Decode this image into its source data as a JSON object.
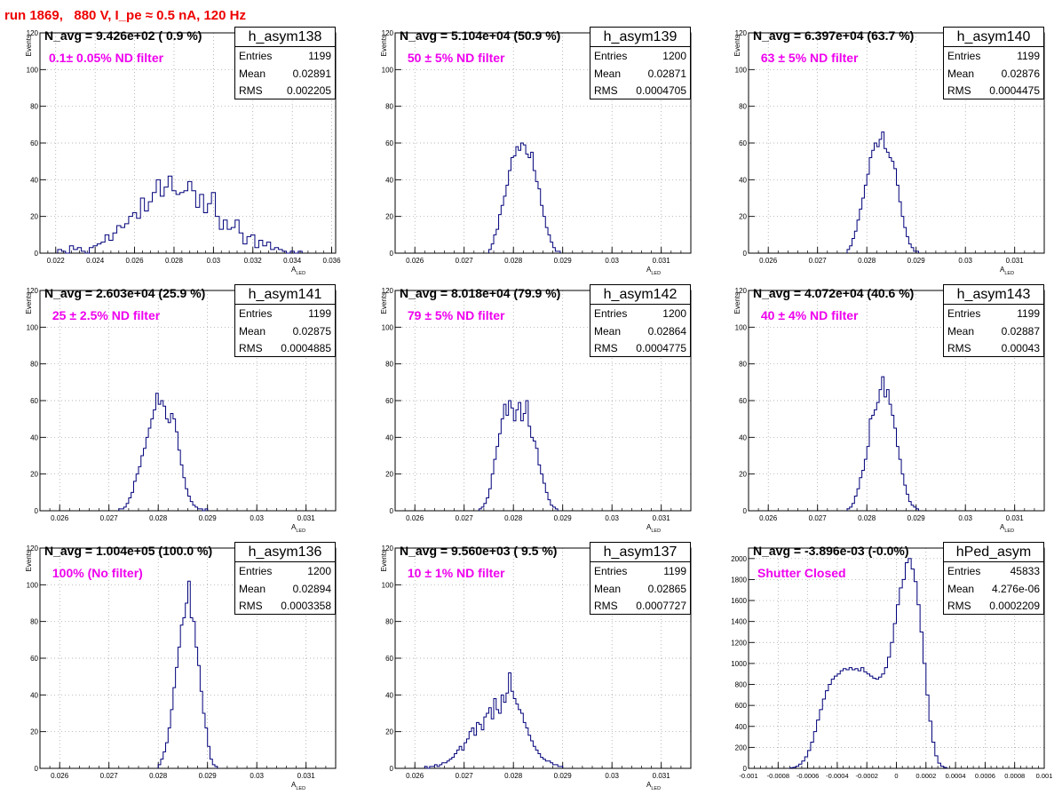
{
  "page": {
    "title": "run 1869,   880 V, I_pe ≈ 0.5 nA, 120 Hz"
  },
  "chart_data": [
    {
      "type": "bar",
      "hist_name": "h_asym138",
      "navg": "N_avg = 9.426e+02 ( 0.9 %)",
      "filter": "0.1± 0.05% ND filter",
      "stats": {
        "entries": "1199",
        "mean": "0.02891",
        "rms": "0.002205"
      },
      "xlim": [
        0.0212,
        0.0362
      ],
      "ylim": [
        0,
        120
      ],
      "x_ticks": [
        "0.022",
        "0.024",
        "0.026",
        "0.028",
        "0.03",
        "0.032",
        "0.034",
        "0.036"
      ],
      "x_tick_values": [
        0.022,
        0.024,
        0.026,
        0.028,
        0.03,
        0.032,
        0.034,
        0.036
      ],
      "y_ticks": [
        0,
        20,
        40,
        60,
        80,
        100,
        120
      ],
      "ylabel": "Events",
      "xlabel": "A",
      "xlabel_sub": "LED",
      "bin_start": 0.0221,
      "bin_width": 0.0002,
      "values": [
        2,
        1,
        0,
        4,
        2,
        3,
        1,
        0,
        3,
        4,
        5,
        6,
        10,
        7,
        11,
        15,
        14,
        16,
        20,
        22,
        19,
        30,
        23,
        28,
        33,
        40,
        31,
        36,
        42,
        34,
        32,
        33,
        34,
        39,
        34,
        25,
        32,
        22,
        27,
        33,
        20,
        13,
        18,
        13,
        14,
        18,
        11,
        5,
        9,
        10,
        3,
        7,
        4,
        6,
        2,
        3,
        2,
        1,
        0,
        1,
        0,
        1
      ]
    },
    {
      "type": "bar",
      "hist_name": "h_asym139",
      "navg": "N_avg = 5.104e+04 (50.9 %)",
      "filter": " 50 ± 5% ND filter",
      "stats": {
        "entries": "1200",
        "mean": "0.02871",
        "rms": "0.0004705"
      },
      "xlim": [
        0.0256,
        0.0316
      ],
      "ylim": [
        0,
        120
      ],
      "x_ticks": [
        "0.026",
        "0.027",
        "0.028",
        "0.029",
        "0.03",
        "0.031"
      ],
      "x_tick_values": [
        0.026,
        0.027,
        0.028,
        0.029,
        0.03,
        0.031
      ],
      "y_ticks": [
        0,
        20,
        40,
        60,
        80,
        100,
        120
      ],
      "ylabel": "Events",
      "xlabel": "A",
      "xlabel_sub": "LED",
      "bin_start": 0.0275,
      "bin_width": 5e-05,
      "values": [
        2,
        5,
        10,
        13,
        21,
        26,
        31,
        37,
        45,
        52,
        53,
        58,
        56,
        60,
        59,
        54,
        52,
        55,
        45,
        39,
        35,
        26,
        20,
        14,
        10,
        6,
        3,
        1,
        1
      ]
    },
    {
      "type": "bar",
      "hist_name": "h_asym140",
      "navg": "N_avg = 6.397e+04 (63.7 %)",
      "filter": " 63 ± 5% ND filter",
      "stats": {
        "entries": "1199",
        "mean": "0.02876",
        "rms": "0.0004475"
      },
      "xlim": [
        0.0256,
        0.0316
      ],
      "ylim": [
        0,
        120
      ],
      "x_ticks": [
        "0.026",
        "0.027",
        "0.028",
        "0.029",
        "0.03",
        "0.031"
      ],
      "x_tick_values": [
        0.026,
        0.027,
        0.028,
        0.029,
        0.03,
        0.031
      ],
      "y_ticks": [
        0,
        20,
        40,
        60,
        80,
        100,
        120
      ],
      "ylabel": "Events",
      "xlabel": "A",
      "xlabel_sub": "LED",
      "bin_start": 0.0276,
      "bin_width": 5e-05,
      "values": [
        2,
        4,
        8,
        12,
        18,
        24,
        30,
        37,
        43,
        52,
        56,
        60,
        58,
        62,
        66,
        57,
        55,
        52,
        50,
        46,
        37,
        28,
        20,
        14,
        9,
        5,
        3,
        1,
        1
      ]
    },
    {
      "type": "bar",
      "hist_name": "h_asym141",
      "navg": "N_avg = 2.603e+04 (25.9 %)",
      "filter": " 25 ± 2.5% ND filter",
      "stats": {
        "entries": "1199",
        "mean": "0.02875",
        "rms": "0.0004885"
      },
      "xlim": [
        0.0256,
        0.0316
      ],
      "ylim": [
        0,
        120
      ],
      "x_ticks": [
        "0.026",
        "0.027",
        "0.028",
        "0.029",
        "0.03",
        "0.031"
      ],
      "x_tick_values": [
        0.026,
        0.027,
        0.028,
        0.029,
        0.03,
        0.031
      ],
      "y_ticks": [
        0,
        20,
        40,
        60,
        80,
        100,
        120
      ],
      "ylabel": "Events",
      "xlabel": "A",
      "xlabel_sub": "LED",
      "bin_start": 0.0272,
      "bin_width": 5e-05,
      "values": [
        1,
        1,
        2,
        4,
        7,
        10,
        16,
        20,
        24,
        30,
        34,
        40,
        45,
        50,
        55,
        64,
        58,
        60,
        57,
        50,
        48,
        53,
        50,
        43,
        33,
        25,
        18,
        12,
        8,
        5,
        3,
        2,
        1,
        1,
        0,
        1
      ]
    },
    {
      "type": "bar",
      "hist_name": "h_asym142",
      "navg": "N_avg = 8.018e+04 (79.9 %)",
      "filter": " 79 ± 5% ND filter",
      "stats": {
        "entries": "1200",
        "mean": "0.02864",
        "rms": "0.0004775"
      },
      "xlim": [
        0.0256,
        0.0316
      ],
      "ylim": [
        0,
        120
      ],
      "x_ticks": [
        "0.026",
        "0.027",
        "0.028",
        "0.029",
        "0.03",
        "0.031"
      ],
      "x_tick_values": [
        0.026,
        0.027,
        0.028,
        0.029,
        0.03,
        0.031
      ],
      "y_ticks": [
        0,
        20,
        40,
        60,
        80,
        100,
        120
      ],
      "ylabel": "Events",
      "xlabel": "A",
      "xlabel_sub": "LED",
      "bin_start": 0.0273,
      "bin_width": 5e-05,
      "values": [
        1,
        2,
        4,
        7,
        12,
        20,
        28,
        35,
        42,
        50,
        58,
        52,
        60,
        56,
        49,
        55,
        59,
        49,
        53,
        60,
        46,
        40,
        38,
        34,
        25,
        20,
        15,
        10,
        6,
        3,
        2,
        1
      ]
    },
    {
      "type": "bar",
      "hist_name": "h_asym143",
      "navg": "N_avg = 4.072e+04 (40.6 %)",
      "filter": " 40 ± 4% ND filter",
      "stats": {
        "entries": "1199",
        "mean": "0.02887",
        "rms": "0.00043"
      },
      "xlim": [
        0.0256,
        0.0316
      ],
      "ylim": [
        0,
        120
      ],
      "x_ticks": [
        "0.026",
        "0.027",
        "0.028",
        "0.029",
        "0.03",
        "0.031"
      ],
      "x_tick_values": [
        0.026,
        0.027,
        0.028,
        0.029,
        0.03,
        0.031
      ],
      "y_ticks": [
        0,
        20,
        40,
        60,
        80,
        100,
        120
      ],
      "ylabel": "Events",
      "xlabel": "A",
      "xlabel_sub": "LED",
      "bin_start": 0.0276,
      "bin_width": 5e-05,
      "values": [
        1,
        2,
        4,
        8,
        12,
        18,
        22,
        28,
        35,
        50,
        52,
        55,
        59,
        66,
        73,
        62,
        66,
        58,
        52,
        45,
        35,
        28,
        20,
        14,
        9,
        5,
        3,
        2,
        1
      ]
    },
    {
      "type": "bar",
      "hist_name": "h_asym136",
      "navg": "N_avg = 1.004e+05 (100.0 %)",
      "filter": " 100% (No filter)",
      "stats": {
        "entries": "1200",
        "mean": "0.02894",
        "rms": "0.0003358"
      },
      "xlim": [
        0.0256,
        0.0316
      ],
      "ylim": [
        0,
        120
      ],
      "x_ticks": [
        "0.026",
        "0.027",
        "0.028",
        "0.029",
        "0.03",
        "0.031"
      ],
      "x_tick_values": [
        0.026,
        0.027,
        0.028,
        0.029,
        0.03,
        0.031
      ],
      "y_ticks": [
        0,
        20,
        40,
        60,
        80,
        100,
        120
      ],
      "ylabel": "Events",
      "xlabel": "A",
      "xlabel_sub": "LED",
      "bin_start": 0.028,
      "bin_width": 5e-05,
      "values": [
        2,
        5,
        9,
        14,
        22,
        32,
        44,
        55,
        66,
        78,
        82,
        90,
        102,
        82,
        80,
        66,
        56,
        42,
        30,
        22,
        12,
        5,
        2,
        1
      ]
    },
    {
      "type": "bar",
      "hist_name": "h_asym137",
      "navg": "N_avg = 9.560e+03 ( 9.5 %)",
      "filter": " 10 ± 1% ND filter",
      "stats": {
        "entries": "1199",
        "mean": "0.02865",
        "rms": "0.0007727"
      },
      "xlim": [
        0.0256,
        0.0316
      ],
      "ylim": [
        0,
        120
      ],
      "x_ticks": [
        "0.026",
        "0.027",
        "0.028",
        "0.029",
        "0.03",
        "0.031"
      ],
      "x_tick_values": [
        0.026,
        0.027,
        0.028,
        0.029,
        0.03,
        0.031
      ],
      "y_ticks": [
        0,
        20,
        40,
        60,
        80,
        100,
        120
      ],
      "ylabel": "Events",
      "xlabel": "A",
      "xlabel_sub": "LED",
      "bin_start": 0.0262,
      "bin_width": 5e-05,
      "values": [
        1,
        0,
        1,
        1,
        2,
        1,
        2,
        3,
        3,
        4,
        5,
        6,
        8,
        10,
        12,
        10,
        14,
        16,
        20,
        22,
        18,
        25,
        24,
        21,
        28,
        30,
        33,
        27,
        38,
        32,
        30,
        40,
        36,
        41,
        52,
        42,
        38,
        35,
        32,
        30,
        25,
        22,
        18,
        15,
        12,
        10,
        8,
        6,
        5,
        4,
        4,
        3,
        2,
        2,
        1,
        1
      ]
    },
    {
      "type": "bar",
      "hist_name": "hPed_asym",
      "navg": "N_avg = -3.896e-03 (-0.0%)",
      "filter": "Shutter Closed",
      "stats": {
        "entries": "45833",
        "mean": "4.276e-06",
        "rms": "0.0002209"
      },
      "xlim": [
        -0.001,
        0.001
      ],
      "ylim": [
        0,
        2100
      ],
      "x_ticks": [
        "-0.001",
        "-0.0008",
        "-0.0006",
        "-0.0004",
        "-0.0002",
        "0",
        "0.0002",
        "0.0004",
        "0.0006",
        "0.0008",
        "0.001"
      ],
      "x_tick_values": [
        -0.001,
        -0.0008,
        -0.0006,
        -0.0004,
        -0.0002,
        0,
        0.0002,
        0.0004,
        0.0006,
        0.0008,
        0.001
      ],
      "y_ticks": [
        0,
        200,
        400,
        600,
        800,
        1000,
        1200,
        1400,
        1600,
        1800,
        2000
      ],
      "ylabel": "",
      "xlabel": "",
      "xlabel_sub": "",
      "bin_start": -0.00072,
      "bin_width": 2e-05,
      "values": [
        5,
        10,
        20,
        40,
        70,
        110,
        170,
        250,
        350,
        460,
        560,
        660,
        740,
        800,
        850,
        880,
        900,
        930,
        950,
        940,
        960,
        940,
        950,
        930,
        960,
        920,
        900,
        880,
        860,
        850,
        870,
        900,
        960,
        1060,
        1200,
        1380,
        1560,
        1720,
        1800,
        1960,
        2000,
        1900,
        1780,
        1560,
        1300,
        1000,
        700,
        450,
        250,
        120,
        50,
        20,
        8
      ]
    }
  ]
}
